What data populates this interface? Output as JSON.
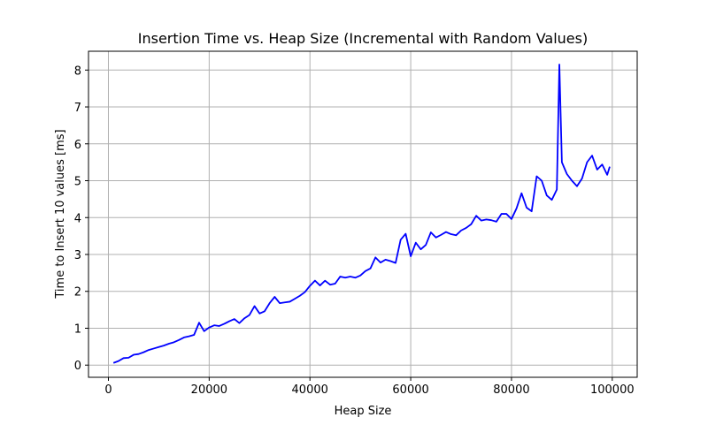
{
  "chart_data": {
    "type": "line",
    "title": "Insertion Time vs. Heap Size (Incremental with Random Values)",
    "xlabel": "Heap Size",
    "ylabel": "Time to Insert 10 values [ms]",
    "xlim": [
      -3950,
      104950
    ],
    "ylim": [
      -0.33,
      8.51
    ],
    "xticks": [
      0,
      20000,
      40000,
      60000,
      80000,
      100000
    ],
    "yticks": [
      0,
      1,
      2,
      3,
      4,
      5,
      6,
      7,
      8
    ],
    "xtick_labels": [
      "0",
      "20000",
      "40000",
      "60000",
      "80000",
      "100000"
    ],
    "ytick_labels": [
      "0",
      "1",
      "2",
      "3",
      "4",
      "5",
      "6",
      "7",
      "8"
    ],
    "grid": true,
    "line_color": "#0000ff",
    "series": [
      {
        "x": [
          1000,
          2000,
          3000,
          4000,
          5000,
          6000,
          7000,
          8000,
          9000,
          10000,
          11000,
          12000,
          13000,
          14000,
          15000,
          16000,
          17000,
          18000,
          19000,
          20000,
          21000,
          22000,
          23000,
          24000,
          25000,
          26000,
          27000,
          28000,
          29000,
          30000,
          31000,
          32000,
          33000,
          34000,
          35000,
          36000,
          37000,
          38000,
          39000,
          40000,
          41000,
          42000,
          43000,
          44000,
          45000,
          46000,
          47000,
          48000,
          49000,
          50000,
          51000,
          52000,
          53000,
          54000,
          55000,
          56000,
          57000,
          58000,
          59000,
          60000,
          61000,
          62000,
          63000,
          64000,
          65000,
          66000,
          67000,
          68000,
          69000,
          70000,
          71000,
          72000,
          73000,
          74000,
          75000,
          76000,
          77000,
          78000,
          79000,
          80000,
          81000,
          82000,
          83000,
          84000,
          85000,
          86000,
          87000,
          88000,
          89000,
          89500,
          90000,
          91000,
          92000,
          93000,
          94000,
          95000,
          96000,
          97000,
          98000,
          99000,
          99500
        ],
        "y": [
          0.06,
          0.11,
          0.19,
          0.2,
          0.28,
          0.3,
          0.35,
          0.41,
          0.45,
          0.49,
          0.53,
          0.58,
          0.62,
          0.68,
          0.75,
          0.78,
          0.82,
          1.15,
          0.92,
          1.02,
          1.08,
          1.06,
          1.12,
          1.19,
          1.25,
          1.14,
          1.27,
          1.36,
          1.6,
          1.4,
          1.46,
          1.68,
          1.85,
          1.68,
          1.7,
          1.72,
          1.8,
          1.88,
          1.98,
          2.15,
          2.29,
          2.16,
          2.29,
          2.18,
          2.21,
          2.4,
          2.37,
          2.4,
          2.37,
          2.43,
          2.55,
          2.62,
          2.92,
          2.78,
          2.86,
          2.82,
          2.77,
          3.4,
          3.56,
          2.95,
          3.32,
          3.14,
          3.26,
          3.6,
          3.46,
          3.53,
          3.61,
          3.55,
          3.52,
          3.65,
          3.72,
          3.82,
          4.05,
          3.92,
          3.95,
          3.93,
          3.89,
          4.1,
          4.1,
          3.96,
          4.25,
          4.66,
          4.27,
          4.17,
          5.12,
          5.0,
          4.6,
          4.48,
          4.76,
          8.15,
          5.5,
          5.18,
          5.0,
          4.85,
          5.06,
          5.5,
          5.68,
          5.3,
          5.44,
          5.16,
          5.38
        ]
      }
    ]
  }
}
